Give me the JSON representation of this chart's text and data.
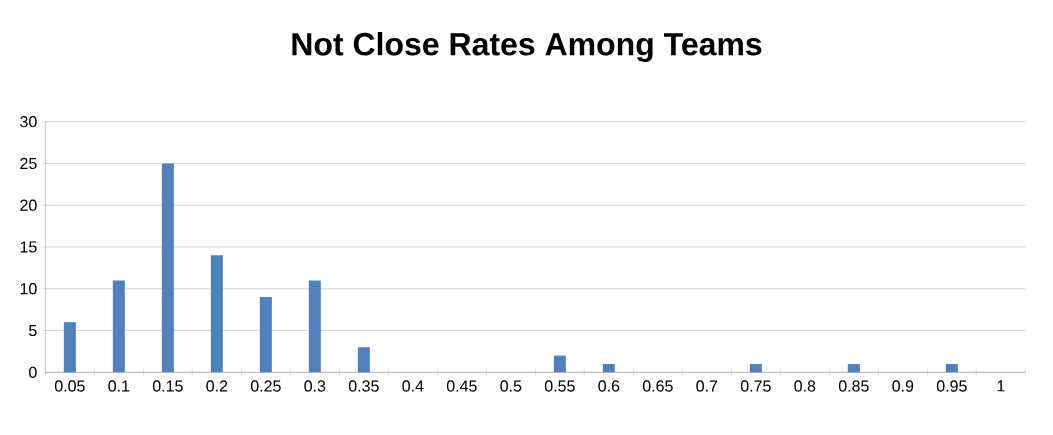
{
  "chart_data": {
    "type": "bar",
    "title": "Not Close Rates Among Teams",
    "categories": [
      "0.05",
      "0.1",
      "0.15",
      "0.2",
      "0.25",
      "0.3",
      "0.35",
      "0.4",
      "0.45",
      "0.5",
      "0.55",
      "0.6",
      "0.65",
      "0.7",
      "0.75",
      "0.8",
      "0.85",
      "0.9",
      "0.95",
      "1"
    ],
    "values": [
      6,
      11,
      25,
      14,
      9,
      11,
      3,
      0,
      0,
      0,
      2,
      1,
      0,
      0,
      1,
      0,
      1,
      0,
      1,
      0
    ],
    "color": "#4f81bd",
    "ylim": [
      0,
      30
    ],
    "yticks": [
      0,
      5,
      10,
      15,
      20,
      25,
      30
    ],
    "grid": "y"
  }
}
